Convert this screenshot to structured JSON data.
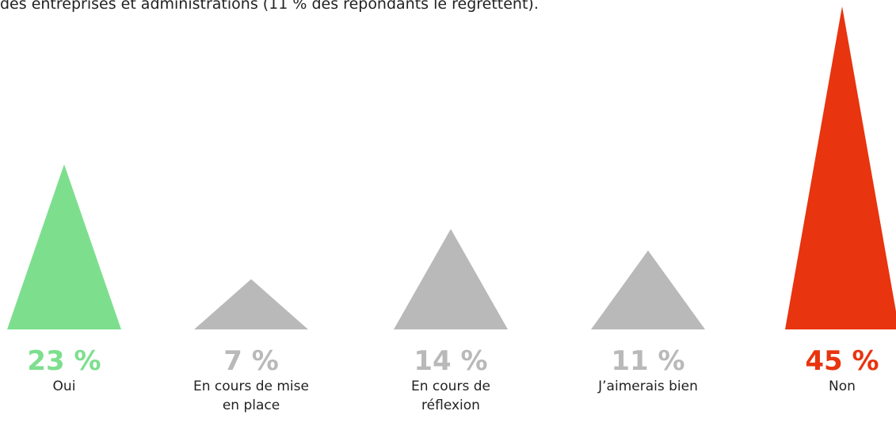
{
  "chart_data": {
    "type": "triangle",
    "subtitle": "des entreprises et administrations (11 % des répondants le regrettent).",
    "categories": [
      "Oui",
      "En cours de mise en place",
      "En cours de réflexion",
      "J’aimerais bien",
      "Non"
    ],
    "values": [
      23,
      7,
      14,
      11,
      45
    ],
    "value_labels": [
      "23 %",
      "7 %",
      "14 %",
      "11 %",
      "45 %"
    ],
    "colors": [
      "#7ddf8e",
      "#b9b9b9",
      "#b9b9b9",
      "#b9b9b9",
      "#e8340f"
    ]
  }
}
